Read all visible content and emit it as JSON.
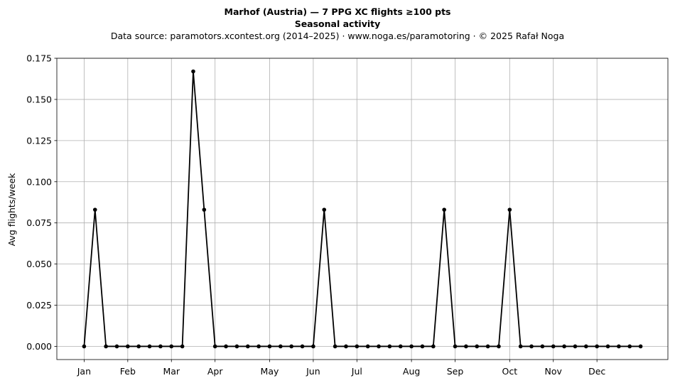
{
  "header": {
    "title": "Marhof (Austria)  —  7 PPG XC flights ≥100 pts",
    "subtitle": "Seasonal activity",
    "source": "Data source: paramotors.xcontest.org (2014–2025)  ·  www.noga.es/paramotoring  ·  © 2025 Rafał Noga"
  },
  "chart_data": {
    "type": "line",
    "title": "Marhof (Austria)  —  7 PPG XC flights ≥100 pts",
    "subtitle": "Seasonal activity",
    "xlabel": "",
    "ylabel": "Avg flights/week",
    "x_unit": "week of year",
    "xlim": [
      -2.5,
      53.5
    ],
    "ylim": [
      -0.008,
      0.175
    ],
    "yticks": [
      0.0,
      0.025,
      0.05,
      0.075,
      0.1,
      0.125,
      0.15,
      0.175
    ],
    "ytick_labels": [
      "0.000",
      "0.025",
      "0.050",
      "0.075",
      "0.100",
      "0.125",
      "0.150",
      "0.175"
    ],
    "xticks": [
      0,
      4,
      8,
      12,
      17,
      21,
      25,
      30,
      34,
      39,
      43,
      47
    ],
    "xtick_labels": [
      "Jan",
      "Feb",
      "Mar",
      "Apr",
      "May",
      "Jun",
      "Jul",
      "Aug",
      "Sep",
      "Oct",
      "Nov",
      "Dec"
    ],
    "grid": true,
    "line_color": "#000000",
    "series": [
      {
        "x": [
          0,
          1,
          2,
          3,
          4,
          5,
          6,
          7,
          8,
          9,
          10,
          11,
          12,
          13,
          14,
          15,
          16,
          17,
          18,
          19,
          20,
          21,
          22,
          23,
          24,
          25,
          26,
          27,
          28,
          29,
          30,
          31,
          32,
          33,
          34,
          35,
          36,
          37,
          38,
          39,
          40,
          41,
          42,
          43,
          44,
          45,
          46,
          47,
          48,
          49,
          50,
          51
        ],
        "values": [
          0,
          0.083,
          0,
          0,
          0,
          0,
          0,
          0,
          0,
          0,
          0.167,
          0.083,
          0,
          0,
          0,
          0,
          0,
          0,
          0,
          0,
          0,
          0,
          0.083,
          0,
          0,
          0,
          0,
          0,
          0,
          0,
          0,
          0,
          0,
          0.083,
          0,
          0,
          0,
          0,
          0,
          0.083,
          0,
          0,
          0,
          0,
          0,
          0,
          0,
          0,
          0,
          0,
          0,
          0
        ]
      }
    ]
  }
}
